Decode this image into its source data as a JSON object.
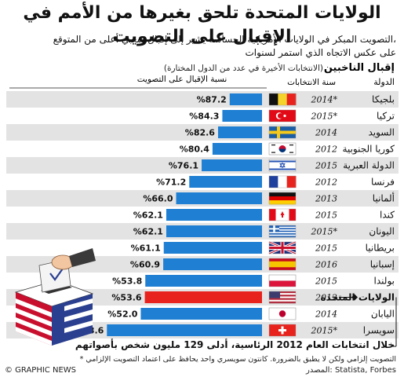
{
  "header": {
    "title": "الولايات المتحدة تلحق بغيرها من الأمم في الإقبال على التصويت",
    "subtitle_line1": "التصويت المبكر في الولايات الأمريكية الحساسة يشير إلى إقبال شعبي أعلى من المتوقع،",
    "subtitle_line2": "على عكس الاتجاه الذي استمر لسنوات"
  },
  "chart_data": {
    "type": "bar",
    "title": "إقبال الناخبين",
    "subtitle": "(الانتخابات الأخيرة في عدد من الدول المختارة)",
    "column_headers": {
      "country": "الدولة",
      "year": "سنة الانتخابات",
      "turnout": "نسبة الإقبال على التصويت"
    },
    "categories": [
      "بلجيكا",
      "تركيا",
      "السويد",
      "كوريا الجنوبية",
      "الدولة العبرية",
      "فرنسا",
      "ألمانيا",
      "كندا",
      "اليونان",
      "بريطانيا",
      "إسبانيا",
      "بولندا",
      "الولايات المتحدة",
      "اليابان",
      "سويسرا"
    ],
    "years": [
      "2014*",
      "2015*",
      "2014",
      "2012",
      "2015",
      "2012",
      "2013",
      "2015",
      "2015*",
      "2015",
      "2016",
      "2015",
      "2012",
      "2014",
      "2015*"
    ],
    "values": [
      87.2,
      84.3,
      82.6,
      80.4,
      76.1,
      71.2,
      66.0,
      62.1,
      62.1,
      61.1,
      60.9,
      53.8,
      53.6,
      52.0,
      38.6
    ],
    "value_labels": [
      "%87.2",
      "%84.3",
      "%82.6",
      "%80.4",
      "%76.1",
      "%71.2",
      "%66.0",
      "%62.1",
      "%62.1",
      "%61.1",
      "%60.9",
      "%53.8",
      "%53.6",
      "%52.0",
      "%38.6"
    ],
    "highlight_index": 12,
    "colors": {
      "bar": "#1f7fd2",
      "highlight": "#e8231d",
      "row_shade": "#e3e3e3"
    },
    "xlim": [
      0,
      100
    ]
  },
  "footer": {
    "caption": "خلال انتخابات العام 2012 الرئاسية، أدلى 129 مليون شخص بأصواتهم",
    "note": "* التصويت إلزامي ولكن لا يطبق بالضرورة. كانتون سويسري واحد يحافظ على اعتماد التصويت الإلزامي",
    "credit": "© GRAPHIC NEWS",
    "source": "المصدر: Statista, Forbes"
  },
  "icons": {
    "ballot": "ballot-box-icon",
    "flags": "country-flag-icon"
  }
}
